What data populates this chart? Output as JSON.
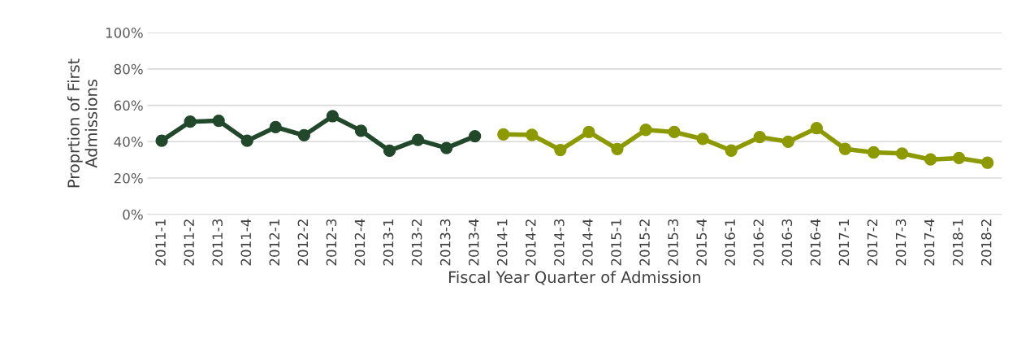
{
  "chart_data": {
    "type": "line",
    "xlabel": "Fiscal Year Quarter of Admission",
    "ylabel": "Proprtion of First Admissions",
    "categories": [
      "2011-1",
      "2011-2",
      "2011-3",
      "2011-4",
      "2012-1",
      "2012-2",
      "2012-3",
      "2012-4",
      "2013-1",
      "2013-2",
      "2013-3",
      "2013-4",
      "2014-1",
      "2014-2",
      "2014-3",
      "2014-4",
      "2015-1",
      "2015-2",
      "2015-3",
      "2015-4",
      "2016-1",
      "2016-2",
      "2016-3",
      "2016-4",
      "2017-1",
      "2017-2",
      "2017-3",
      "2017-4",
      "2018-1",
      "2018-2"
    ],
    "series": [
      {
        "color": "#22482c",
        "values": [
          40.5,
          51,
          51.5,
          40.5,
          48,
          43.5,
          54,
          46,
          35,
          41,
          36.5,
          43,
          null,
          null,
          null,
          null,
          null,
          null,
          null,
          null,
          null,
          null,
          null,
          null,
          null,
          null,
          null,
          null,
          null,
          null
        ]
      },
      {
        "color": "#8c9a00",
        "values": [
          null,
          null,
          null,
          null,
          null,
          null,
          null,
          null,
          null,
          null,
          null,
          null,
          44,
          43.7,
          35.4,
          45.3,
          35.9,
          46.5,
          45.3,
          41.5,
          35.1,
          42.5,
          40,
          47.4,
          36,
          34.1,
          33.5,
          30.2,
          31,
          28.4
        ]
      }
    ],
    "ylim": [
      0,
      100
    ],
    "yticks": [
      {
        "value": 0,
        "label": "0%"
      },
      {
        "value": 20,
        "label": "20%"
      },
      {
        "value": 40,
        "label": "40%"
      },
      {
        "value": 60,
        "label": "60%"
      },
      {
        "value": 80,
        "label": "80%"
      },
      {
        "value": 100,
        "label": "100%"
      }
    ],
    "grid": "y",
    "marker": "circle",
    "line_style": "solid"
  }
}
